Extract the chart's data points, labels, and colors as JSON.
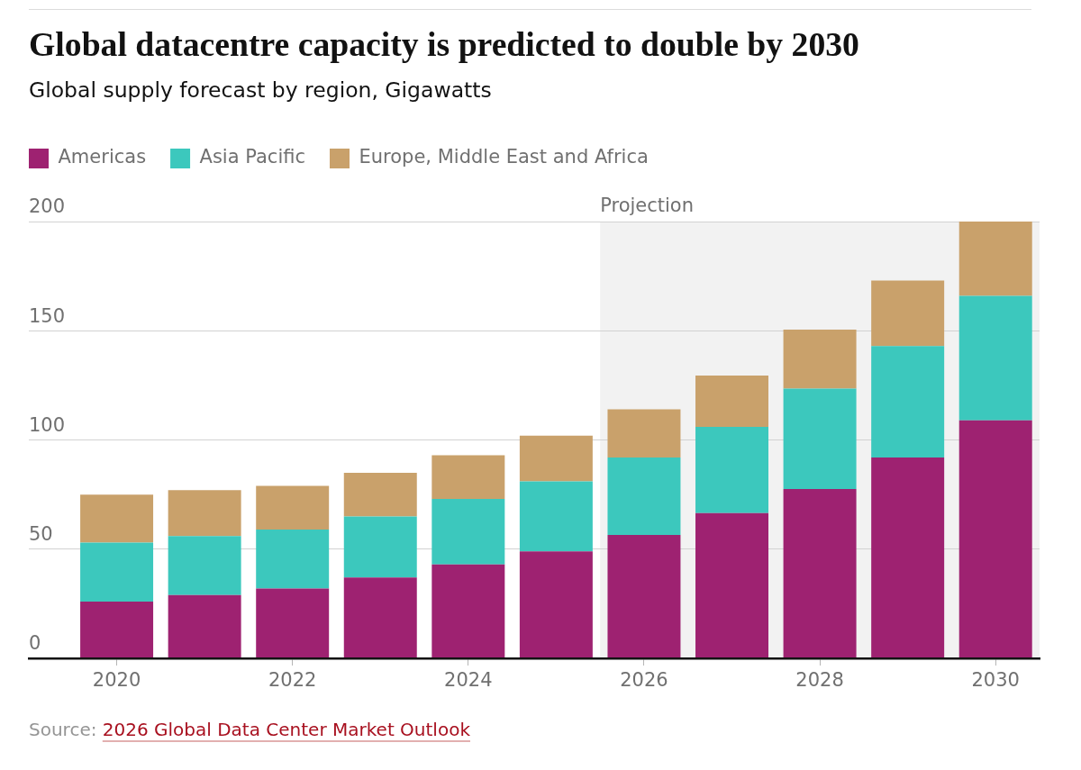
{
  "chart_data": {
    "type": "bar",
    "title": "Global datacentre capacity is predicted to double by 2030",
    "subtitle": "Global supply forecast by region, Gigawatts",
    "x": [
      2020,
      2021,
      2022,
      2023,
      2024,
      2025,
      2026,
      2027,
      2028,
      2029,
      2030
    ],
    "series": [
      {
        "name": "Americas",
        "color": "#9e2271",
        "values": [
          26,
          29,
          32,
          37,
          43,
          49,
          56.5,
          66.5,
          77.5,
          92,
          109
        ]
      },
      {
        "name": "Asia Pacific",
        "color": "#3cc8bd",
        "values": [
          27,
          27,
          27,
          28,
          30,
          32,
          35.5,
          39.5,
          46,
          51,
          57
        ]
      },
      {
        "name": "Europe, Middle East and Africa",
        "color": "#c9a16b",
        "values": [
          22,
          21,
          20,
          20,
          20,
          21,
          22,
          23.5,
          27,
          30,
          34
        ]
      }
    ],
    "stacked": true,
    "xlim": [
      2019,
      2030.5
    ],
    "xticks": [
      2020,
      2022,
      2024,
      2026,
      2028,
      2030
    ],
    "ylim": [
      0,
      200
    ],
    "yticks": [
      0,
      50,
      100,
      150,
      200
    ],
    "grid": "y",
    "legend": "top left",
    "bands": [
      {
        "axis": "x",
        "from": 2025.5,
        "to": 2030.5,
        "label": "Projection",
        "color": "#f2f2f2"
      }
    ],
    "annotations": [
      "Source:",
      "2026 Global Data Center Market Outlook"
    ]
  }
}
